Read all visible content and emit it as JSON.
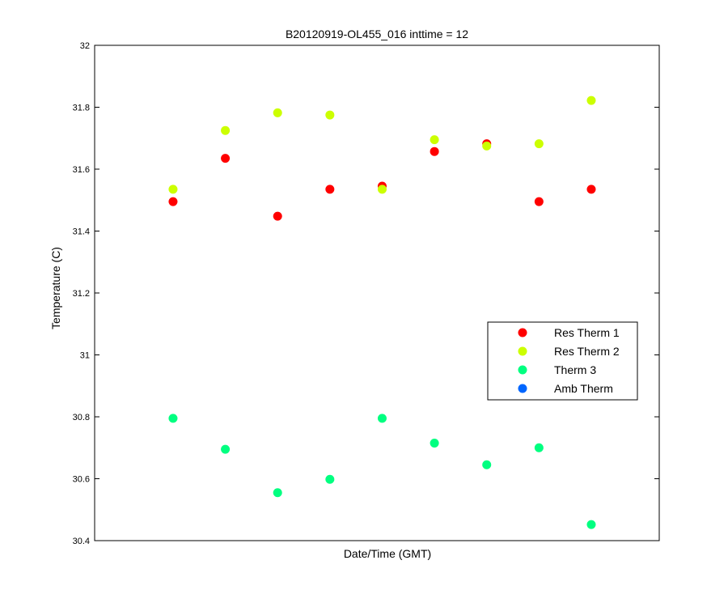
{
  "chart_data": {
    "type": "scatter",
    "title": "B20120919-OL455_016 inttime = 12",
    "xlabel": "Date/Time (GMT)",
    "ylabel": "Temperature (C)",
    "ylim": [
      30.4,
      32
    ],
    "yticks": [
      "30.4",
      "30.6",
      "30.8",
      "31",
      "31.2",
      "31.4",
      "31.6",
      "31.8",
      "32"
    ],
    "x": [
      1,
      2,
      3,
      4,
      5,
      6,
      7,
      8,
      9
    ],
    "xlim": [
      -0.5,
      10.3
    ],
    "grid": false,
    "legend_position": "right",
    "series": [
      {
        "name": "Res Therm 1",
        "color": "#ff0000",
        "values": [
          31.495,
          31.635,
          31.448,
          31.535,
          31.545,
          31.657,
          31.682,
          31.495,
          31.535
        ]
      },
      {
        "name": "Res Therm 2",
        "color": "#ccff00",
        "values": [
          31.535,
          31.725,
          31.782,
          31.775,
          31.535,
          31.695,
          31.675,
          31.682,
          31.822
        ]
      },
      {
        "name": "Therm 3",
        "color": "#00ff80",
        "values": [
          30.795,
          30.695,
          30.555,
          30.598,
          30.795,
          30.715,
          30.645,
          30.7,
          30.452
        ]
      },
      {
        "name": "Amb Therm",
        "color": "#0066ff",
        "values": []
      }
    ]
  }
}
